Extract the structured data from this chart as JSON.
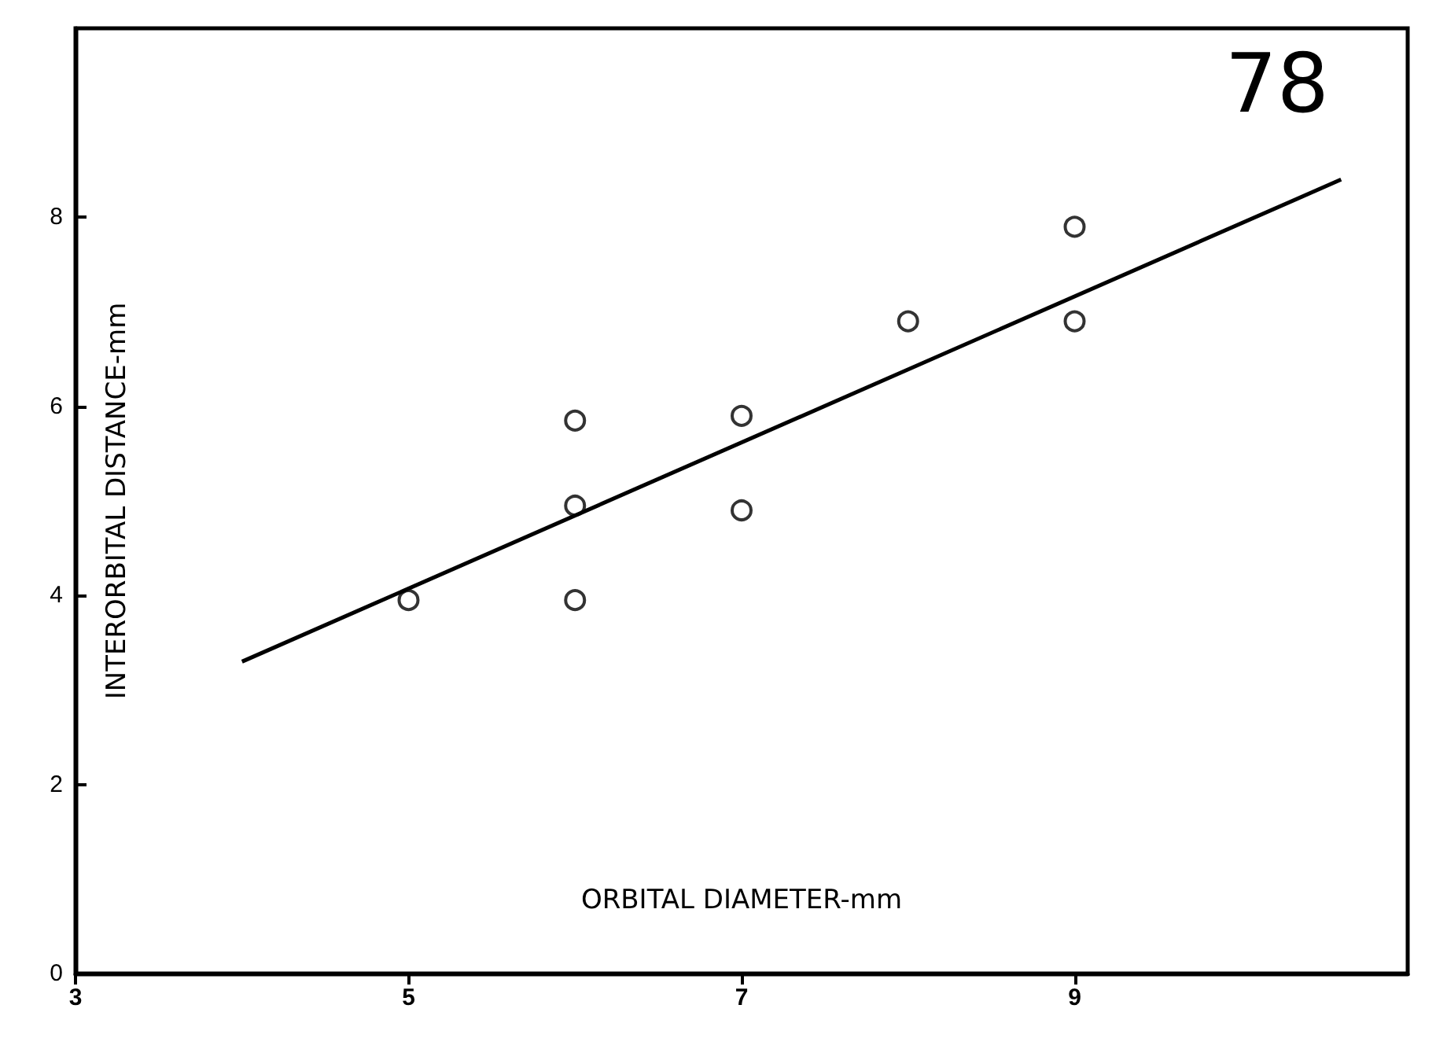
{
  "chart_data": {
    "type": "scatter",
    "xlabel": "ORBITAL DIAMETER-mm",
    "ylabel": "INTERORBITAL DISTANCE-mm",
    "annotations": [
      "78"
    ],
    "xlim": [
      3,
      11
    ],
    "xticks": [
      3,
      5,
      7,
      9
    ],
    "ylim": [
      0,
      10
    ],
    "yticks": [
      0,
      2,
      4,
      6,
      8
    ],
    "grid": false,
    "marker": "circle",
    "series": [
      {
        "color": "#000000",
        "x": [
          5,
          6,
          6,
          6,
          7,
          7,
          8,
          9,
          9
        ],
        "values": [
          3.95,
          5.85,
          4.95,
          3.95,
          5.9,
          4.9,
          6.9,
          7.9,
          6.9
        ]
      },
      {
        "type": "line",
        "color": "#000000",
        "marker": "none",
        "line_style": "solid",
        "x": [
          4,
          10.6
        ],
        "values": [
          3.3,
          8.4
        ]
      }
    ]
  }
}
